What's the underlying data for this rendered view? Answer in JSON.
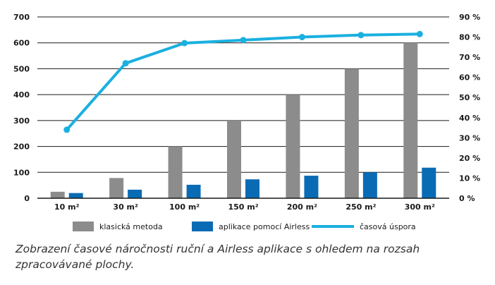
{
  "chart_data": {
    "type": "bar",
    "categories": [
      "10 m²",
      "30 m²",
      "100 m²",
      "150 m²",
      "200 m²",
      "250 m²",
      "300 m²"
    ],
    "series": [
      {
        "name": "klasická metoda",
        "type": "bar",
        "axis": "left",
        "color": "#8c8c8c",
        "values": [
          25,
          78,
          200,
          300,
          400,
          500,
          600
        ]
      },
      {
        "name": "aplikace pomocí Airless",
        "type": "bar",
        "axis": "left",
        "color": "#0a6bb5",
        "values": [
          20,
          33,
          52,
          73,
          87,
          100,
          118
        ]
      },
      {
        "name": "časová úspora",
        "type": "line",
        "axis": "right",
        "color": "#1ab0e0",
        "values": [
          34,
          67,
          77,
          78.5,
          80,
          81,
          81.5
        ]
      }
    ],
    "left_axis": {
      "ylim": [
        0,
        700
      ],
      "ticks": [
        0,
        100,
        200,
        300,
        400,
        500,
        600,
        700
      ]
    },
    "right_axis": {
      "ylim": [
        0,
        90
      ],
      "ticks": [
        0,
        10,
        20,
        30,
        40,
        50,
        60,
        70,
        80,
        90
      ],
      "tick_labels": [
        "0 %",
        "10 %",
        "20 %",
        "30 %",
        "40 %",
        "50 %",
        "60 %",
        "70 %",
        "80 %",
        "90 %"
      ]
    },
    "grid": true,
    "legend_position": "bottom"
  },
  "caption": "Zobrazení časové náročnosti ruční a Airless aplikace s ohledem na rozsah zpracovávané plochy."
}
